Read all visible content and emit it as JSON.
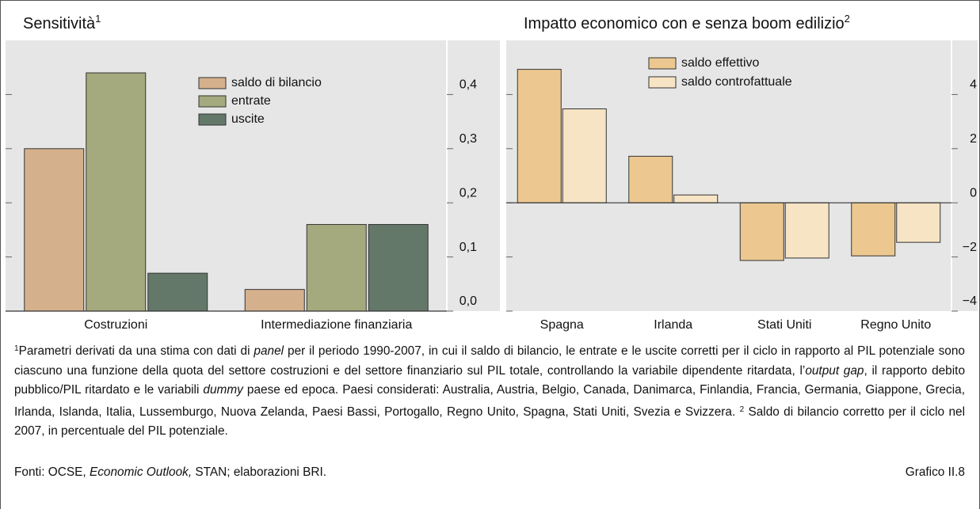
{
  "chart_data": [
    {
      "type": "bar",
      "title": "Sensitività",
      "title_note": "1",
      "categories": [
        "Costruzioni",
        "Intermediazione finanziaria"
      ],
      "series": [
        {
          "name": "saldo di bilancio",
          "color": "#d5b08c",
          "values": [
            0.3,
            0.04
          ]
        },
        {
          "name": "entrate",
          "color": "#a4aa7d",
          "values": [
            0.44,
            0.16
          ]
        },
        {
          "name": "uscite",
          "color": "#637869",
          "values": [
            0.07,
            0.16
          ]
        }
      ],
      "ylim": [
        0,
        0.5
      ],
      "yticks": [
        {
          "value": 0,
          "label": "0,0"
        },
        {
          "value": 0.1,
          "label": "0,1"
        },
        {
          "value": 0.2,
          "label": "0,2"
        },
        {
          "value": 0.3,
          "label": "0,3"
        },
        {
          "value": 0.4,
          "label": "0,4"
        }
      ]
    },
    {
      "type": "bar",
      "title": "Impatto economico con e senza boom edilizio",
      "title_note": "2",
      "categories": [
        "Spagna",
        "Irlanda",
        "Stati Uniti",
        "Regno Unito"
      ],
      "series": [
        {
          "name": "saldo effettivo",
          "color": "#ecc890",
          "values": [
            4.93,
            1.72,
            -2.13,
            -1.96
          ]
        },
        {
          "name": "saldo controfattuale",
          "color": "#f6e4c4",
          "values": [
            3.47,
            0.29,
            -2.04,
            -1.46
          ]
        }
      ],
      "ylim": [
        -4,
        6
      ],
      "yticks": [
        {
          "value": -4,
          "label": "−4"
        },
        {
          "value": -2,
          "label": "−2"
        },
        0,
        2,
        4
      ]
    }
  ],
  "footnotes": [
    {
      "text": "1",
      "style": "sup"
    },
    "Parametri derivati da una stima con dati di ",
    {
      "text": "panel",
      "style": "italic"
    },
    " per il periodo 1990-2007, in cui il saldo di bilancio, le entrate e le uscite corretti per il ciclo in rapporto al PIL potenziale sono ciascuno una funzione della quota del settore costruzioni e del settore finanziario sul PIL totale, controllando la variabile dipendente ritardata, l’",
    {
      "text": "output gap",
      "style": "italic"
    },
    ", il rapporto debito pubblico/PIL ritardato e le variabili ",
    {
      "text": "dummy",
      "style": "italic"
    },
    " paese ed epoca. Paesi considerati: Australia, Austria, Belgio, Canada, Danimarca, Finlandia, Francia, Germania, Giappone, Grecia, Irlanda, Islanda, Italia, Lussemburgo, Nuova Zelanda, Paesi Bassi, Portogallo, Regno Unito, Spagna, Stati Uniti, Svezia e Svizzera. ",
    {
      "text": "2",
      "style": "sup"
    },
    " Saldo di bilancio corretto per il ciclo nel 2007, in percentuale del PIL potenziale."
  ],
  "source": [
    "Fonti: OCSE, ",
    {
      "text": "Economic Outlook,",
      "style": "italic"
    },
    " STAN; elaborazioni BRI."
  ],
  "chart_id": "Grafico II.8"
}
